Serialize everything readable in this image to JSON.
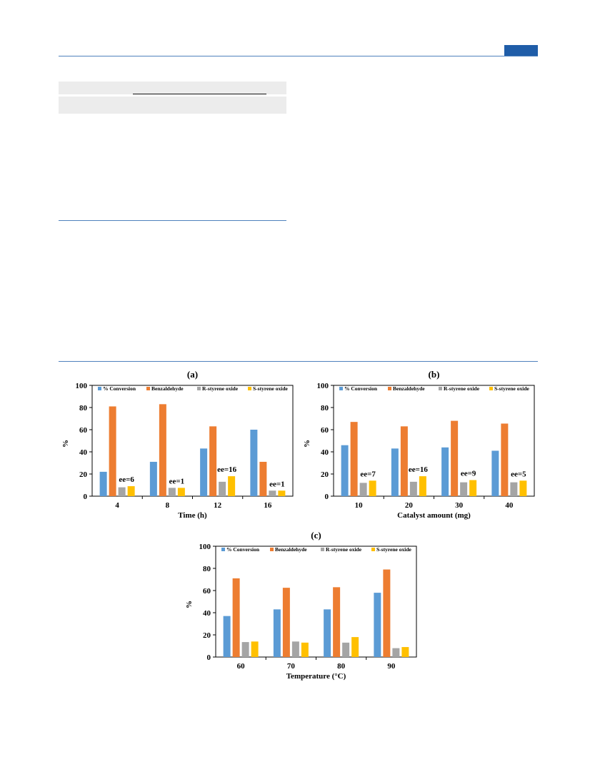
{
  "chart_data": [
    {
      "type": "bar",
      "panel_label": "(a)",
      "xlabel": "Time (h)",
      "ylabel": "%",
      "ylim": [
        0,
        100
      ],
      "yticks": [
        "0",
        "20",
        "40",
        "60",
        "80",
        "100"
      ],
      "legend_position": "top",
      "categories": [
        "4",
        "8",
        "12",
        "16"
      ],
      "series": [
        {
          "name": "% Conversion",
          "color": "#5b9bd5",
          "values": [
            22,
            31,
            43,
            60
          ]
        },
        {
          "name": "Benzaldehyde",
          "color": "#ed7d31",
          "values": [
            81,
            83,
            63,
            31
          ]
        },
        {
          "name": "R-styrene oxide",
          "color": "#a5a5a5",
          "values": [
            8,
            7.5,
            13,
            5
          ]
        },
        {
          "name": "S-styrene oxide",
          "color": "#ffc000",
          "values": [
            9,
            7.5,
            18,
            5
          ]
        }
      ],
      "annotations": [
        "ee=6",
        "ee=1",
        "ee=16",
        "ee=1"
      ]
    },
    {
      "type": "bar",
      "panel_label": "(b)",
      "xlabel": "Catalyst amount (mg)",
      "ylabel": "%",
      "ylim": [
        0,
        100
      ],
      "yticks": [
        "0",
        "20",
        "40",
        "60",
        "80",
        "100"
      ],
      "legend_position": "top",
      "categories": [
        "10",
        "20",
        "30",
        "40"
      ],
      "series": [
        {
          "name": "% Conversion",
          "color": "#5b9bd5",
          "values": [
            46,
            43,
            44,
            41
          ]
        },
        {
          "name": "Benzaldehyde",
          "color": "#ed7d31",
          "values": [
            67,
            63,
            68,
            65.5
          ]
        },
        {
          "name": "R-styrene oxide",
          "color": "#a5a5a5",
          "values": [
            12,
            13,
            12.5,
            12.5
          ]
        },
        {
          "name": "S-styrene oxide",
          "color": "#ffc000",
          "values": [
            14,
            18,
            14.5,
            14
          ]
        }
      ],
      "annotations": [
        "ee=7",
        "ee=16",
        "ee=9",
        "ee=5"
      ]
    },
    {
      "type": "bar",
      "panel_label": "(c)",
      "xlabel": "Temperature (°C)",
      "ylabel": "%",
      "ylim": [
        0,
        100
      ],
      "yticks": [
        "0",
        "20",
        "40",
        "60",
        "80",
        "100"
      ],
      "legend_position": "top",
      "categories": [
        "60",
        "70",
        "80",
        "90"
      ],
      "series": [
        {
          "name": "% Conversion",
          "color": "#5b9bd5",
          "values": [
            37,
            43,
            43,
            58
          ]
        },
        {
          "name": "Benzaldehyde",
          "color": "#ed7d31",
          "values": [
            71,
            62.5,
            63,
            79
          ]
        },
        {
          "name": "R-styrene oxide",
          "color": "#a5a5a5",
          "values": [
            13.5,
            14,
            13,
            8
          ]
        },
        {
          "name": "S-styrene oxide",
          "color": "#ffc000",
          "values": [
            14,
            13,
            18,
            9
          ]
        }
      ],
      "annotations": []
    }
  ]
}
